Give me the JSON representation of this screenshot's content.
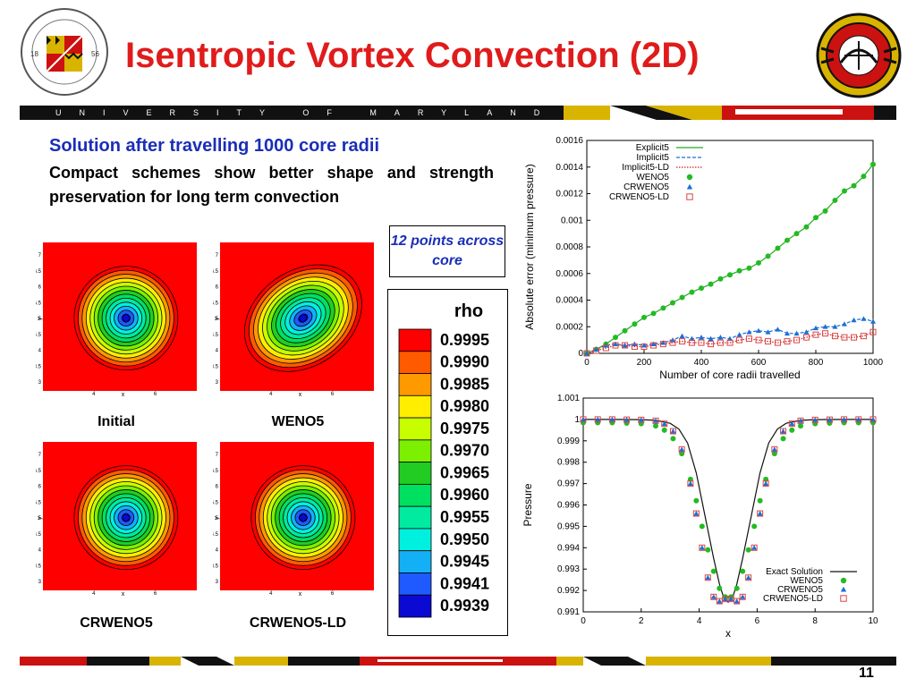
{
  "header": {
    "title": "Isentropic Vortex Convection (2D)",
    "banner_text": "UNIVERSITY OF MARYLAND",
    "left_logo": {
      "name": "university-of-maryland-seal",
      "text": "UNIVERSITY OF MARYLAND 1856"
    },
    "right_logo": {
      "name": "alfred-gessow-rotorcraft-center-logo",
      "text": "ALFRED GESSOW ROTORCRAFT CENTER"
    }
  },
  "content": {
    "subheading": "Solution after travelling 1000 core radii",
    "description": "Compact schemes show better shape and strength preservation for long term convection",
    "callout": "12 points across core"
  },
  "contour_panels": [
    {
      "label": "Initial",
      "elongated": false
    },
    {
      "label": "WENO5",
      "elongated": true
    },
    {
      "label": "CRWENO5",
      "elongated": false
    },
    {
      "label": "CRWENO5-LD",
      "elongated": false
    }
  ],
  "contour_axes": {
    "xlabel": "x",
    "ylabel": "y",
    "x_ticks": [
      "4",
      "6"
    ],
    "y_ticks": [
      "3",
      "3.5",
      "4",
      "4.5",
      "5",
      "5.5",
      "6",
      "6.5",
      "7"
    ]
  },
  "colorbar": {
    "title": "rho",
    "levels": [
      "0.9995",
      "0.9990",
      "0.9985",
      "0.9980",
      "0.9975",
      "0.9970",
      "0.9965",
      "0.9960",
      "0.9955",
      "0.9950",
      "0.9945",
      "0.9941",
      "0.9939"
    ],
    "colors": [
      "#ff0000",
      "#ff5a00",
      "#ff9900",
      "#ffee00",
      "#c8ff00",
      "#7cf000",
      "#22cc22",
      "#00e060",
      "#00eaa0",
      "#00f0e0",
      "#14b0f5",
      "#1e5aff",
      "#0a0ad2"
    ]
  },
  "chart_data": [
    {
      "type": "line",
      "title": "",
      "xlabel": "Number of core radii travelled",
      "ylabel": "Absolute error (minimum pressure)",
      "xlim": [
        0,
        1000
      ],
      "ylim": [
        0,
        0.0016
      ],
      "x_ticks": [
        "0",
        "200",
        "400",
        "600",
        "800",
        "1000"
      ],
      "y_ticks": [
        "0",
        "0.0002",
        "0.0004",
        "0.0006",
        "0.0008",
        "0.001",
        "0.0012",
        "0.0014",
        "0.0016"
      ],
      "legend_position": "top-right",
      "series": [
        {
          "name": "Explicit5",
          "style": "solid",
          "marker": "none",
          "color": "#22aa22",
          "x": [
            0,
            33,
            67,
            100,
            133,
            167,
            200,
            233,
            267,
            300,
            333,
            367,
            400,
            433,
            467,
            500,
            533,
            567,
            600,
            633,
            667,
            700,
            733,
            767,
            800,
            833,
            867,
            900,
            933,
            967,
            1000
          ],
          "values": [
            0,
            3e-05,
            7e-05,
            0.00012,
            0.00017,
            0.00022,
            0.00027,
            0.0003,
            0.00034,
            0.00038,
            0.00042,
            0.00046,
            0.00049,
            0.00052,
            0.00056,
            0.00059,
            0.00062,
            0.00064,
            0.00068,
            0.00073,
            0.00079,
            0.00085,
            0.0009,
            0.00095,
            0.00102,
            0.00107,
            0.00115,
            0.00122,
            0.00126,
            0.00133,
            0.00142
          ]
        },
        {
          "name": "Implicit5",
          "style": "dashed",
          "marker": "none",
          "color": "#1a6fd6",
          "x": [
            0,
            33,
            67,
            100,
            133,
            167,
            200,
            233,
            267,
            300,
            333,
            367,
            400,
            433,
            467,
            500,
            533,
            567,
            600,
            633,
            667,
            700,
            733,
            767,
            800,
            833,
            867,
            900,
            933,
            967,
            1000
          ],
          "values": [
            0,
            3e-05,
            6e-05,
            7e-05,
            6e-05,
            7e-05,
            6e-05,
            7e-05,
            8e-05,
            0.0001,
            0.00013,
            0.00011,
            0.00012,
            0.00011,
            0.00012,
            0.00011,
            0.00014,
            0.00016,
            0.00017,
            0.00016,
            0.00018,
            0.00015,
            0.00015,
            0.00016,
            0.00019,
            0.0002,
            0.0002,
            0.00022,
            0.00025,
            0.00026,
            0.00024
          ]
        },
        {
          "name": "Implicit5-LD",
          "style": "dotted",
          "marker": "none",
          "color": "#cc2222",
          "x": [
            0,
            33,
            67,
            100,
            133,
            167,
            200,
            233,
            267,
            300,
            333,
            367,
            400,
            433,
            467,
            500,
            533,
            567,
            600,
            633,
            667,
            700,
            733,
            767,
            800,
            833,
            867,
            900,
            933,
            967,
            1000
          ],
          "values": [
            0,
            2e-05,
            4e-05,
            6e-05,
            6e-05,
            5e-05,
            5e-05,
            6e-05,
            7e-05,
            8e-05,
            9e-05,
            8e-05,
            8e-05,
            7e-05,
            8e-05,
            8e-05,
            0.0001,
            0.00011,
            0.0001,
            9e-05,
            8e-05,
            9e-05,
            0.0001,
            0.00012,
            0.00014,
            0.00015,
            0.00013,
            0.00012,
            0.00012,
            0.00013,
            0.00016
          ]
        },
        {
          "name": "WENO5",
          "style": "none",
          "marker": "circle",
          "color": "#22bb22",
          "x": [
            0,
            33,
            67,
            100,
            133,
            167,
            200,
            233,
            267,
            300,
            333,
            367,
            400,
            433,
            467,
            500,
            533,
            567,
            600,
            633,
            667,
            700,
            733,
            767,
            800,
            833,
            867,
            900,
            933,
            967,
            1000
          ],
          "values": [
            0,
            3e-05,
            7e-05,
            0.00012,
            0.00017,
            0.00022,
            0.00027,
            0.0003,
            0.00034,
            0.00038,
            0.00042,
            0.00046,
            0.00049,
            0.00052,
            0.00056,
            0.00059,
            0.00062,
            0.00064,
            0.00068,
            0.00073,
            0.00079,
            0.00085,
            0.0009,
            0.00095,
            0.00102,
            0.00107,
            0.00115,
            0.00122,
            0.00126,
            0.00133,
            0.00142
          ]
        },
        {
          "name": "CRWENO5",
          "style": "none",
          "marker": "triangle",
          "color": "#1a6fd6",
          "x": [
            0,
            33,
            67,
            100,
            133,
            167,
            200,
            233,
            267,
            300,
            333,
            367,
            400,
            433,
            467,
            500,
            533,
            567,
            600,
            633,
            667,
            700,
            733,
            767,
            800,
            833,
            867,
            900,
            933,
            967,
            1000
          ],
          "values": [
            0,
            3e-05,
            6e-05,
            7e-05,
            6e-05,
            7e-05,
            6e-05,
            7e-05,
            8e-05,
            0.0001,
            0.00013,
            0.00011,
            0.00012,
            0.00011,
            0.00012,
            0.00011,
            0.00014,
            0.00016,
            0.00017,
            0.00016,
            0.00018,
            0.00015,
            0.00015,
            0.00016,
            0.00019,
            0.0002,
            0.0002,
            0.00022,
            0.00025,
            0.00026,
            0.00024
          ]
        },
        {
          "name": "CRWENO5-LD",
          "style": "none",
          "marker": "square-open",
          "color": "#dd4444",
          "x": [
            0,
            33,
            67,
            100,
            133,
            167,
            200,
            233,
            267,
            300,
            333,
            367,
            400,
            433,
            467,
            500,
            533,
            567,
            600,
            633,
            667,
            700,
            733,
            767,
            800,
            833,
            867,
            900,
            933,
            967,
            1000
          ],
          "values": [
            0,
            2e-05,
            4e-05,
            6e-05,
            6e-05,
            5e-05,
            5e-05,
            6e-05,
            7e-05,
            8e-05,
            9e-05,
            8e-05,
            8e-05,
            7e-05,
            8e-05,
            8e-05,
            0.0001,
            0.00011,
            0.0001,
            9e-05,
            8e-05,
            9e-05,
            0.0001,
            0.00012,
            0.00014,
            0.00015,
            0.00013,
            0.00012,
            0.00012,
            0.00013,
            0.00016
          ]
        }
      ]
    },
    {
      "type": "line",
      "title": "",
      "xlabel": "x",
      "ylabel": "Pressure",
      "xlim": [
        0,
        10
      ],
      "ylim": [
        0.991,
        1.001
      ],
      "x_ticks": [
        "0",
        "2",
        "4",
        "6",
        "8",
        "10"
      ],
      "y_ticks": [
        "0.991",
        "0.992",
        "0.993",
        "0.994",
        "0.995",
        "0.996",
        "0.997",
        "0.998",
        "0.999",
        "1",
        "1.001"
      ],
      "legend_position": "bottom-right",
      "series": [
        {
          "name": "Exact Solution",
          "style": "solid",
          "marker": "none",
          "color": "#111111",
          "x": [
            0,
            1,
            2,
            2.5,
            3,
            3.3,
            3.6,
            3.9,
            4.2,
            4.5,
            4.7,
            4.85,
            5,
            5.15,
            5.3,
            5.5,
            5.8,
            6.1,
            6.4,
            6.7,
            7,
            7.5,
            8,
            9,
            10
          ],
          "values": [
            1.0,
            1.0,
            0.99999,
            0.99996,
            0.99982,
            0.99955,
            0.9989,
            0.9975,
            0.9955,
            0.9935,
            0.9923,
            0.99165,
            0.99145,
            0.99165,
            0.9923,
            0.9935,
            0.9955,
            0.9975,
            0.9989,
            0.99955,
            0.99982,
            0.99996,
            0.99999,
            1.0,
            1.0
          ]
        },
        {
          "name": "WENO5",
          "style": "none",
          "marker": "circle",
          "color": "#22bb22",
          "x": [
            0,
            0.5,
            1,
            1.5,
            2,
            2.5,
            2.8,
            3.1,
            3.4,
            3.7,
            3.9,
            4.1,
            4.3,
            4.5,
            4.7,
            4.9,
            5.1,
            5.3,
            5.5,
            5.7,
            5.9,
            6.1,
            6.3,
            6.6,
            6.9,
            7.2,
            7.5,
            8,
            8.5,
            9,
            9.5,
            10
          ],
          "values": [
            0.99985,
            0.99985,
            0.99985,
            0.99983,
            0.9998,
            0.9997,
            0.9995,
            0.9991,
            0.9984,
            0.9972,
            0.9962,
            0.995,
            0.9939,
            0.9929,
            0.9921,
            0.9917,
            0.9917,
            0.9921,
            0.9929,
            0.9939,
            0.995,
            0.9962,
            0.9972,
            0.9984,
            0.9991,
            0.9995,
            0.9997,
            0.9998,
            0.99983,
            0.99985,
            0.99985,
            0.99985
          ]
        },
        {
          "name": "CRWENO5",
          "style": "none",
          "marker": "triangle",
          "color": "#1a6fd6",
          "x": [
            0,
            0.5,
            1,
            1.5,
            2,
            2.5,
            2.8,
            3.1,
            3.4,
            3.7,
            3.9,
            4.1,
            4.3,
            4.5,
            4.7,
            4.9,
            5.1,
            5.3,
            5.5,
            5.7,
            5.9,
            6.1,
            6.3,
            6.6,
            6.9,
            7.2,
            7.5,
            8,
            8.5,
            9,
            9.5,
            10
          ],
          "values": [
            1.0,
            1.0,
            1.0,
            0.99999,
            0.99998,
            0.99994,
            0.9998,
            0.99945,
            0.9986,
            0.997,
            0.9956,
            0.994,
            0.9926,
            0.9917,
            0.9915,
            0.9916,
            0.9916,
            0.9915,
            0.9917,
            0.9926,
            0.994,
            0.9956,
            0.997,
            0.9986,
            0.99945,
            0.9998,
            0.99994,
            0.99998,
            0.99999,
            1.0,
            1.0,
            1.0
          ]
        },
        {
          "name": "CRWENO5-LD",
          "style": "none",
          "marker": "square-open",
          "color": "#dd4444",
          "x": [
            0,
            0.5,
            1,
            1.5,
            2,
            2.5,
            2.8,
            3.1,
            3.4,
            3.7,
            3.9,
            4.1,
            4.3,
            4.5,
            4.7,
            4.9,
            5.1,
            5.3,
            5.5,
            5.7,
            5.9,
            6.1,
            6.3,
            6.6,
            6.9,
            7.2,
            7.5,
            8,
            8.5,
            9,
            9.5,
            10
          ],
          "values": [
            1.0,
            1.0,
            1.0,
            0.99999,
            0.99998,
            0.99994,
            0.9998,
            0.99945,
            0.9986,
            0.997,
            0.9956,
            0.994,
            0.9926,
            0.9917,
            0.9915,
            0.9916,
            0.9916,
            0.9915,
            0.9917,
            0.9926,
            0.994,
            0.9956,
            0.997,
            0.9986,
            0.99945,
            0.9998,
            0.99994,
            0.99998,
            0.99999,
            1.0,
            1.0,
            1.0
          ]
        }
      ]
    }
  ],
  "footer": {
    "page_number": "11"
  }
}
